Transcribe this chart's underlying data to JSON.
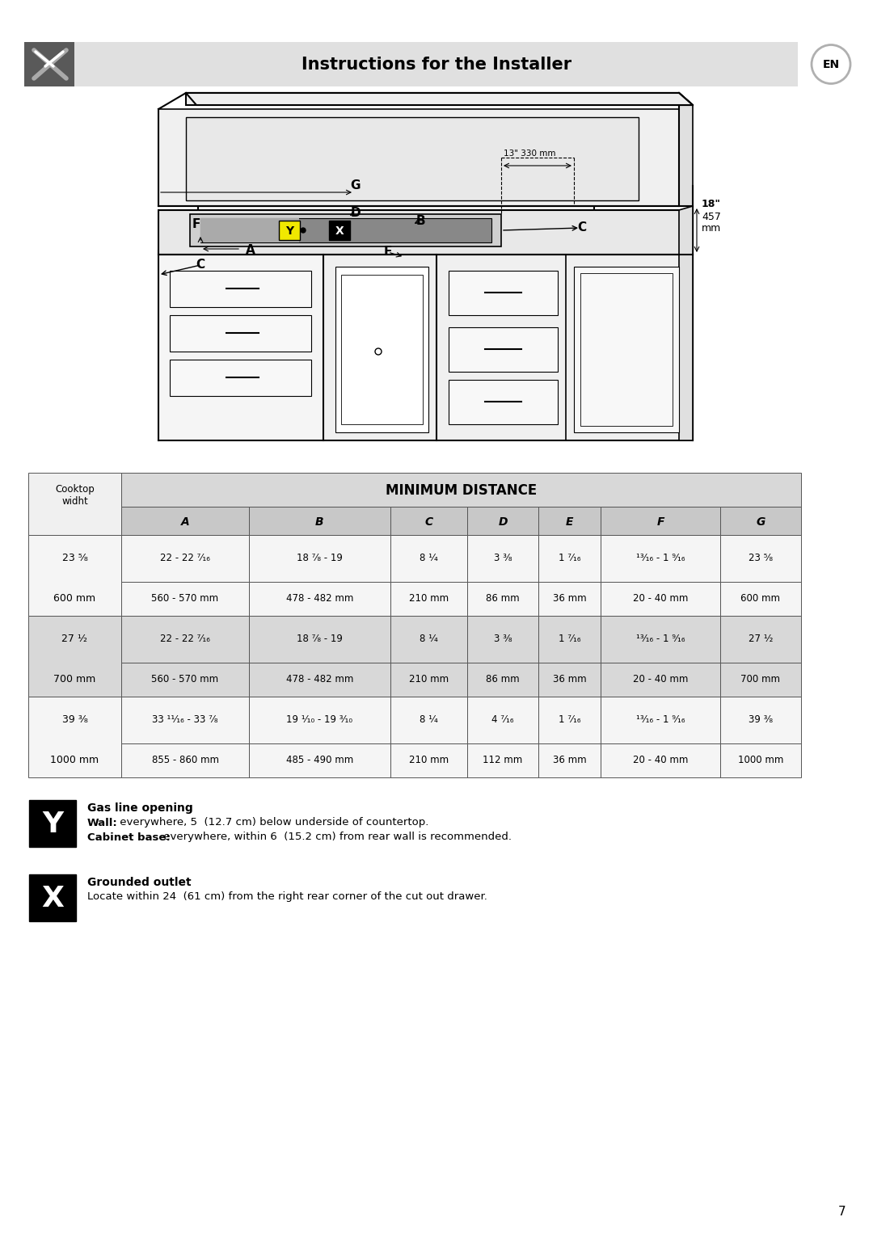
{
  "title": "Instructions for the Installer",
  "bg_color": "#ffffff",
  "header_bg": "#e0e0e0",
  "col_headers": [
    "A",
    "B",
    "C",
    "D",
    "E",
    "F",
    "G"
  ],
  "rows": [
    {
      "width_inch": "23 ⁵⁄₈",
      "width_mm": "600 mm",
      "A": "22 - 22 ⁷⁄₁₆",
      "A_mm": "560 - 570 mm",
      "B": "18 ⁷⁄₈ - 19",
      "B_mm": "478 - 482 mm",
      "C": "8 ¹⁄₄",
      "C_mm": "210 mm",
      "D": "3 ³⁄₈",
      "D_mm": "86 mm",
      "E": "1 ⁷⁄₁₆",
      "E_mm": "36 mm",
      "F": "¹³⁄₁₆ - 1 ⁹⁄₁₆",
      "F_mm": "20 - 40 mm",
      "G": "23 ⁵⁄₈",
      "G_mm": "600 mm",
      "shaded": false
    },
    {
      "width_inch": "27 ¹⁄₂",
      "width_mm": "700 mm",
      "A": "22 - 22 ⁷⁄₁₆",
      "A_mm": "560 - 570 mm",
      "B": "18 ⁷⁄₈ - 19",
      "B_mm": "478 - 482 mm",
      "C": "8 ¹⁄₄",
      "C_mm": "210 mm",
      "D": "3 ³⁄₈",
      "D_mm": "86 mm",
      "E": "1 ⁷⁄₁₆",
      "E_mm": "36 mm",
      "F": "¹³⁄₁₆ - 1 ⁹⁄₁₆",
      "F_mm": "20 - 40 mm",
      "G": "27 ¹⁄₂",
      "G_mm": "700 mm",
      "shaded": true
    },
    {
      "width_inch": "39 ³⁄₈",
      "width_mm": "1000 mm",
      "A": "33 ¹¹⁄₁₆ - 33 ⁷⁄₈",
      "A_mm": "855 - 860 mm",
      "B": "19 ¹⁄₁₀ - 19 ³⁄₁₀",
      "B_mm": "485 - 490 mm",
      "C": "8 ¹⁄₄",
      "C_mm": "210 mm",
      "D": "4 ⁷⁄₁₆",
      "D_mm": "112 mm",
      "E": "1 ⁷⁄₁₆",
      "E_mm": "36 mm",
      "F": "¹³⁄₁₆ - 1 ⁹⁄₁₆",
      "F_mm": "20 - 40 mm",
      "G": "39 ³⁄₈",
      "G_mm": "1000 mm",
      "shaded": false
    }
  ],
  "note_y_title": "Gas line opening",
  "note_y_wall_bold": "Wall:",
  "note_y_wall_rest": " everywhere, 5  (12.7 cm) below underside of countertop.",
  "note_y_cab_bold": "Cabinet base:",
  "note_y_cab_rest": " everywhere, within 6  (15.2 cm) from rear wall is recommended.",
  "note_x_title": "Grounded outlet",
  "note_x_line1": "Locate within 24  (61 cm) from the right rear corner of the cut out drawer.",
  "page_num": "7"
}
